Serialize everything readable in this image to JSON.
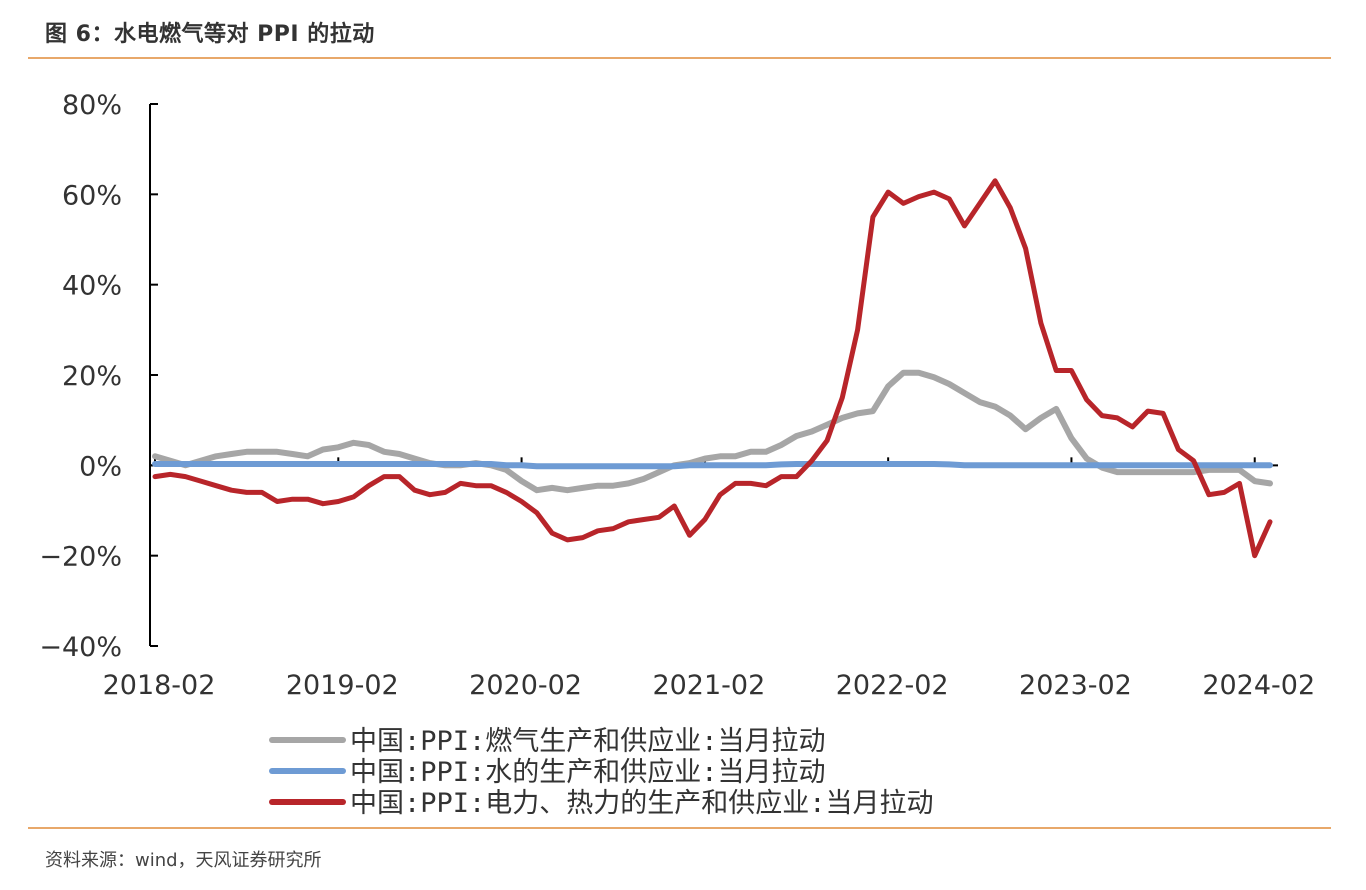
{
  "header": {
    "title": "图 6：水电燃气等对 PPI 的拉动"
  },
  "footer": {
    "source": "资料来源：wind，天风证券研究所"
  },
  "colors": {
    "gas": "#A6A6A6",
    "water": "#6E9BD4",
    "power": "#B8252A",
    "accent_rule": "#E8A86A"
  },
  "chart_data": {
    "type": "line",
    "title": "图 6：水电燃气等对 PPI 的拉动",
    "xlabel": "",
    "ylabel": "",
    "ylim": [
      -40,
      80
    ],
    "y_ticks": [
      "80%",
      "60%",
      "40%",
      "20%",
      "0%",
      "−20%",
      "−40%"
    ],
    "y_tick_values": [
      80,
      60,
      40,
      20,
      0,
      -20,
      -40
    ],
    "x_ticks": [
      "2018-02",
      "2019-02",
      "2020-02",
      "2021-02",
      "2022-02",
      "2023-02",
      "2024-02"
    ],
    "x_start": "2018-02",
    "x_end": "2024-03",
    "legend_position": "bottom",
    "series": [
      {
        "name": "中国:PPI:燃气生产和供应业:当月拉动",
        "color": "#A6A6A6",
        "values": [
          2,
          1,
          0,
          1,
          2,
          2.5,
          3,
          3,
          3,
          2.5,
          2,
          3.5,
          4,
          5,
          4.5,
          3,
          2.5,
          1.5,
          0.5,
          0,
          0,
          0.5,
          0,
          -1,
          -3.5,
          -5.5,
          -5,
          -5.5,
          -5,
          -4.5,
          -4.5,
          -4,
          -3,
          -1.5,
          0,
          0.5,
          1.5,
          2,
          2,
          3,
          3,
          4.5,
          6.5,
          7.5,
          9,
          10.5,
          11.5,
          12,
          17.5,
          20.5,
          20.5,
          19.5,
          18,
          16,
          14,
          13,
          11,
          8,
          10.5,
          12.5,
          6,
          1.5,
          -0.5,
          -1.5,
          -1.5,
          -1.5,
          -1.5,
          -1.5,
          -1.5,
          -1,
          -1,
          -1,
          -3.5,
          -4
        ]
      },
      {
        "name": "中国:PPI:水的生产和供应业:当月拉动",
        "color": "#6E9BD4",
        "values": [
          0.3,
          0.3,
          0.3,
          0.3,
          0.3,
          0.3,
          0.3,
          0.3,
          0.3,
          0.3,
          0.3,
          0.3,
          0.3,
          0.3,
          0.3,
          0.3,
          0.3,
          0.3,
          0.3,
          0.3,
          0.3,
          0.3,
          0.3,
          0,
          0,
          -0.2,
          -0.2,
          -0.2,
          -0.2,
          -0.2,
          -0.2,
          -0.2,
          -0.2,
          -0.2,
          -0.2,
          0,
          0,
          0,
          0,
          0,
          0,
          0.2,
          0.3,
          0.3,
          0.3,
          0.3,
          0.3,
          0.3,
          0.3,
          0.3,
          0.3,
          0.3,
          0.2,
          0,
          0,
          0,
          0,
          0,
          0,
          0,
          0,
          0,
          0,
          0,
          0,
          0,
          0,
          0,
          0,
          0,
          0,
          0,
          0,
          0
        ]
      },
      {
        "name": "中国:PPI:电力、热力的生产和供应业:当月拉动",
        "color": "#B8252A",
        "values": [
          -2.5,
          -2,
          -2.5,
          -3.5,
          -4.5,
          -5.5,
          -6,
          -6,
          -8,
          -7.5,
          -7.5,
          -8.5,
          -8,
          -7,
          -4.5,
          -2.5,
          -2.5,
          -5.5,
          -6.5,
          -6,
          -4,
          -4.5,
          -4.5,
          -6,
          -8,
          -10.5,
          -15,
          -16.5,
          -16,
          -14.5,
          -14,
          -12.5,
          -12,
          -11.5,
          -9,
          -15.5,
          -12,
          -6.5,
          -4,
          -4,
          -4.5,
          -2.5,
          -2.5,
          1,
          5.5,
          15,
          30,
          55,
          60.5,
          58,
          59.5,
          60.5,
          59,
          53,
          58,
          63,
          57,
          48,
          31.5,
          21,
          21,
          14.5,
          11,
          10.5,
          8.5,
          12,
          11.5,
          3.5,
          1,
          -6.5,
          -6,
          -4,
          -20,
          -12.5
        ]
      }
    ]
  }
}
